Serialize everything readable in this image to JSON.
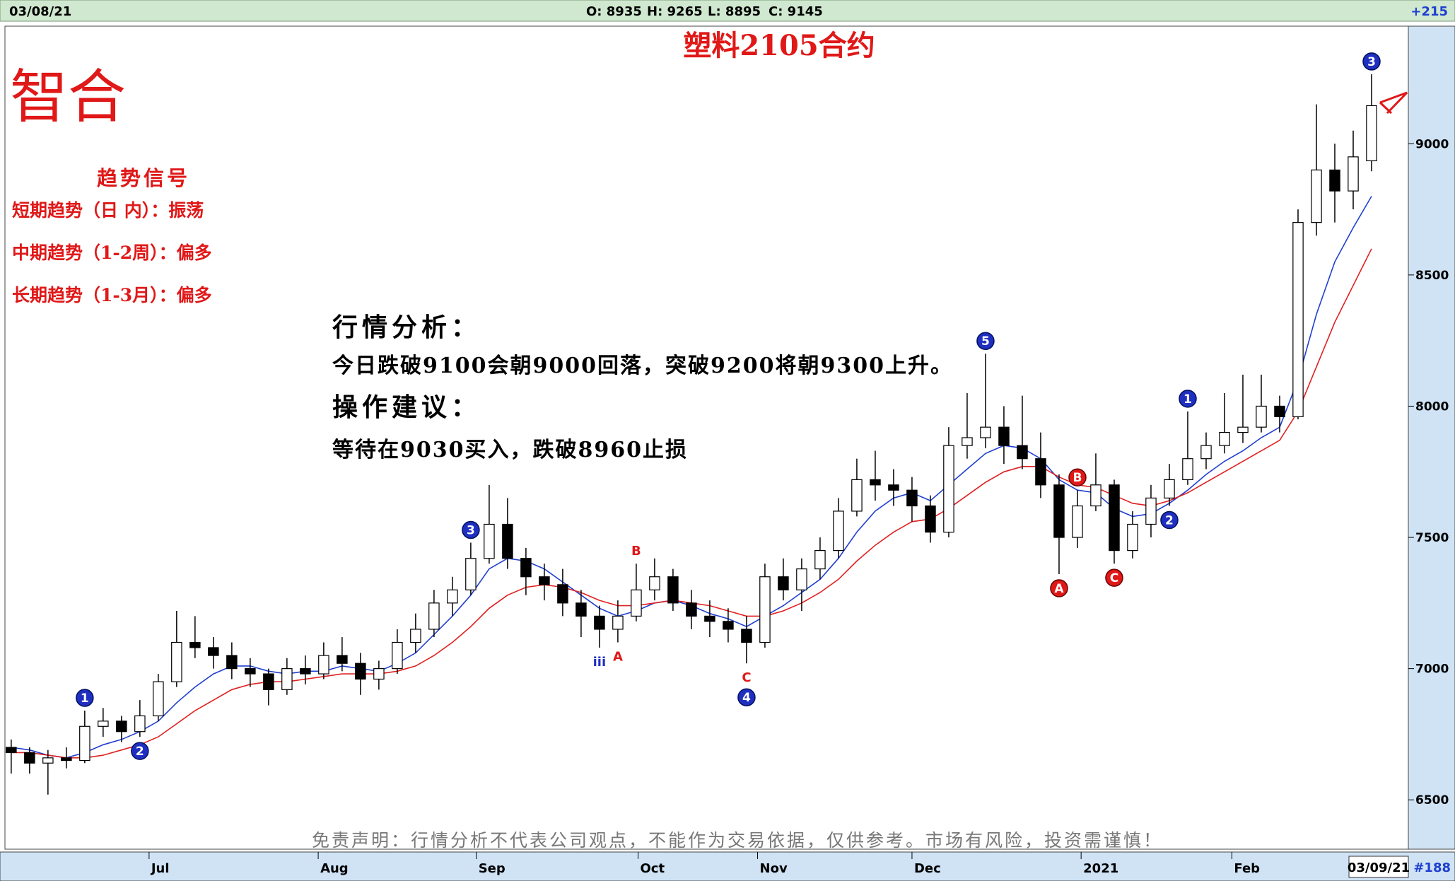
{
  "header": {
    "date": "03/08/21",
    "open": "O: 8935",
    "high": "H: 9265",
    "low": "L: 8895",
    "close": "C: 9145",
    "change": "+215"
  },
  "logo": "智合",
  "signals": {
    "title": "趋势信号",
    "lines": [
      "短期趋势（日 内）：振荡",
      "中期趋势（1-2周）：偏多",
      "长期趋势（1-3月）：偏多"
    ]
  },
  "analysis": {
    "heading": "行情分析：",
    "text": "今日跌破9100会朝9000回落，突破9200将朝9300上升。",
    "advice_heading": "操作建议：",
    "advice": "等待在9030买入，跌破8960止损"
  },
  "disclaimer": "免责声明：行情分析不代表公司观点，不能作为交易依据，仅供参考。市场有风险，投资需谨慎！",
  "footer": {
    "date": "03/09/21",
    "count": "#188"
  },
  "chart_data": {
    "type": "candlestick",
    "title": "塑料2105合约",
    "up_color": "#ffffff",
    "down_color": "#000000",
    "candles": [
      [
        6700,
        6730,
        6600,
        6680
      ],
      [
        6680,
        6700,
        6600,
        6640
      ],
      [
        6640,
        6690,
        6520,
        6660
      ],
      [
        6660,
        6700,
        6620,
        6650
      ],
      [
        6650,
        6840,
        6640,
        6780
      ],
      [
        6780,
        6850,
        6740,
        6800
      ],
      [
        6800,
        6820,
        6720,
        6760
      ],
      [
        6760,
        6880,
        6740,
        6820
      ],
      [
        6820,
        6980,
        6800,
        6950
      ],
      [
        6950,
        7220,
        6930,
        7100
      ],
      [
        7100,
        7200,
        7040,
        7080
      ],
      [
        7080,
        7120,
        7000,
        7050
      ],
      [
        7050,
        7100,
        6960,
        7000
      ],
      [
        7000,
        7040,
        6930,
        6980
      ],
      [
        6980,
        7000,
        6860,
        6920
      ],
      [
        6920,
        7040,
        6900,
        7000
      ],
      [
        7000,
        7050,
        6940,
        6980
      ],
      [
        6980,
        7100,
        6960,
        7050
      ],
      [
        7050,
        7120,
        6990,
        7020
      ],
      [
        7020,
        7060,
        6900,
        6960
      ],
      [
        6960,
        7030,
        6920,
        7000
      ],
      [
        7000,
        7150,
        6980,
        7100
      ],
      [
        7100,
        7210,
        7060,
        7150
      ],
      [
        7150,
        7300,
        7120,
        7250
      ],
      [
        7250,
        7350,
        7200,
        7300
      ],
      [
        7300,
        7480,
        7280,
        7420
      ],
      [
        7420,
        7700,
        7400,
        7550
      ],
      [
        7550,
        7650,
        7380,
        7420
      ],
      [
        7420,
        7460,
        7280,
        7350
      ],
      [
        7350,
        7400,
        7260,
        7320
      ],
      [
        7320,
        7380,
        7200,
        7250
      ],
      [
        7250,
        7300,
        7120,
        7200
      ],
      [
        7200,
        7240,
        7080,
        7150
      ],
      [
        7150,
        7260,
        7100,
        7200
      ],
      [
        7200,
        7400,
        7180,
        7300
      ],
      [
        7300,
        7420,
        7260,
        7350
      ],
      [
        7350,
        7380,
        7220,
        7250
      ],
      [
        7250,
        7300,
        7150,
        7200
      ],
      [
        7200,
        7260,
        7120,
        7180
      ],
      [
        7180,
        7230,
        7100,
        7150
      ],
      [
        7150,
        7200,
        7020,
        7100
      ],
      [
        7100,
        7400,
        7080,
        7350
      ],
      [
        7350,
        7420,
        7260,
        7300
      ],
      [
        7300,
        7420,
        7220,
        7380
      ],
      [
        7380,
        7500,
        7340,
        7450
      ],
      [
        7450,
        7650,
        7420,
        7600
      ],
      [
        7600,
        7800,
        7580,
        7720
      ],
      [
        7720,
        7830,
        7640,
        7700
      ],
      [
        7700,
        7760,
        7620,
        7680
      ],
      [
        7680,
        7730,
        7560,
        7620
      ],
      [
        7620,
        7660,
        7480,
        7520
      ],
      [
        7520,
        7920,
        7500,
        7850
      ],
      [
        7850,
        8050,
        7800,
        7880
      ],
      [
        7880,
        8200,
        7840,
        7920
      ],
      [
        7920,
        8000,
        7780,
        7850
      ],
      [
        7850,
        8040,
        7760,
        7800
      ],
      [
        7800,
        7900,
        7650,
        7700
      ],
      [
        7700,
        7740,
        7360,
        7500
      ],
      [
        7500,
        7680,
        7460,
        7620
      ],
      [
        7620,
        7820,
        7600,
        7700
      ],
      [
        7700,
        7720,
        7400,
        7450
      ],
      [
        7450,
        7600,
        7420,
        7550
      ],
      [
        7550,
        7700,
        7500,
        7650
      ],
      [
        7650,
        7780,
        7620,
        7720
      ],
      [
        7720,
        7980,
        7700,
        7800
      ],
      [
        7800,
        7900,
        7760,
        7850
      ],
      [
        7850,
        8050,
        7820,
        7900
      ],
      [
        7900,
        8120,
        7860,
        7920
      ],
      [
        7920,
        8120,
        7900,
        8000
      ],
      [
        8000,
        8040,
        7900,
        7960
      ],
      [
        7960,
        8750,
        7950,
        8700
      ],
      [
        8700,
        9150,
        8650,
        8900
      ],
      [
        8900,
        9000,
        8700,
        8820
      ],
      [
        8820,
        9050,
        8750,
        8950
      ],
      [
        8935,
        9265,
        8895,
        9145
      ]
    ],
    "ma": [
      {
        "color": "#1f3fd0",
        "values": [
          6700,
          6690,
          6670,
          6660,
          6680,
          6710,
          6730,
          6760,
          6800,
          6870,
          6930,
          6980,
          7010,
          7010,
          6990,
          6980,
          6990,
          6990,
          7010,
          7000,
          6990,
          7020,
          7060,
          7130,
          7200,
          7280,
          7380,
          7420,
          7410,
          7380,
          7330,
          7280,
          7230,
          7200,
          7220,
          7250,
          7260,
          7240,
          7210,
          7190,
          7160,
          7200,
          7240,
          7290,
          7340,
          7420,
          7520,
          7600,
          7650,
          7670,
          7640,
          7700,
          7760,
          7820,
          7850,
          7840,
          7800,
          7720,
          7680,
          7670,
          7610,
          7580,
          7590,
          7630,
          7680,
          7740,
          7790,
          7830,
          7880,
          7920,
          8100,
          8350,
          8550,
          8680,
          8800
        ]
      },
      {
        "color": "#e02020",
        "values": [
          6680,
          6680,
          6670,
          6660,
          6660,
          6670,
          6690,
          6710,
          6740,
          6790,
          6840,
          6880,
          6920,
          6940,
          6950,
          6950,
          6960,
          6970,
          6980,
          6980,
          6980,
          6990,
          7010,
          7050,
          7100,
          7160,
          7230,
          7280,
          7310,
          7320,
          7310,
          7290,
          7260,
          7240,
          7240,
          7250,
          7260,
          7250,
          7240,
          7220,
          7200,
          7200,
          7220,
          7250,
          7290,
          7340,
          7410,
          7470,
          7520,
          7560,
          7570,
          7610,
          7660,
          7710,
          7750,
          7770,
          7770,
          7730,
          7700,
          7690,
          7660,
          7630,
          7620,
          7640,
          7670,
          7710,
          7750,
          7790,
          7830,
          7870,
          7980,
          8150,
          8320,
          8460,
          8600
        ]
      }
    ],
    "ylim": [
      6312,
      9448
    ],
    "yticks": [
      6500,
      7000,
      7500,
      8000,
      8500,
      9000
    ],
    "xlim": [
      -0.34,
      76
    ],
    "xticks": [
      {
        "value": 7.5,
        "label": "Jul"
      },
      {
        "value": 16.7,
        "label": "Aug"
      },
      {
        "value": 25.3,
        "label": "Sep"
      },
      {
        "value": 34.1,
        "label": "Oct"
      },
      {
        "value": 40.6,
        "label": "Nov"
      },
      {
        "value": 49.0,
        "label": "Dec"
      },
      {
        "value": 58.2,
        "label": "2021"
      },
      {
        "value": 66.4,
        "label": "Feb"
      }
    ],
    "annotations": [
      {
        "text": "1",
        "candle": 4,
        "place": "above",
        "style": "circle-blue"
      },
      {
        "text": "2",
        "candle": 7,
        "place": "below",
        "style": "circle-blue"
      },
      {
        "text": "3",
        "candle": 25,
        "place": "above",
        "style": "circle-blue"
      },
      {
        "text": "iii",
        "candle": 32,
        "place": "below",
        "style": "blue"
      },
      {
        "text": "A",
        "candle": 33,
        "place": "below",
        "style": "red"
      },
      {
        "text": "B",
        "candle": 34,
        "place": "above",
        "style": "red"
      },
      {
        "text": "C",
        "candle": 40,
        "place": "below",
        "style": "red"
      },
      {
        "text": "4",
        "candle": 40,
        "place": "below",
        "style": "circle-blue"
      },
      {
        "text": "5",
        "candle": 53,
        "place": "above",
        "style": "circle-blue"
      },
      {
        "text": "A",
        "candle": 57,
        "place": "below",
        "style": "circle-red"
      },
      {
        "text": "B",
        "candle": 58,
        "place": "above",
        "style": "circle-red"
      },
      {
        "text": "C",
        "candle": 60,
        "place": "below",
        "style": "circle-red"
      },
      {
        "text": "2",
        "candle": 63,
        "place": "below",
        "style": "circle-blue"
      },
      {
        "text": "1",
        "candle": 64,
        "place": "above",
        "style": "circle-blue"
      },
      {
        "text": "3",
        "candle": 74,
        "place": "above",
        "style": "circle-blue"
      }
    ]
  }
}
